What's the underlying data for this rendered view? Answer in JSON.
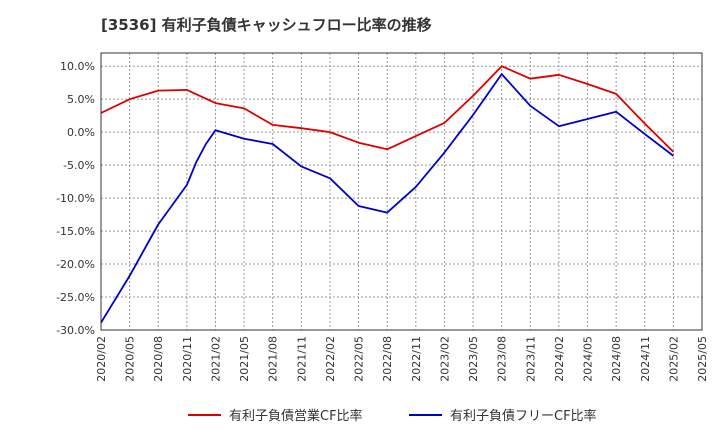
{
  "chart_data": {
    "type": "line",
    "title": "[3536]  有利子負債キャッシュフロー比率の推移",
    "xlabel": "",
    "ylabel": "",
    "ylim": [
      -30,
      12
    ],
    "y_ticks": [
      10,
      5,
      0,
      -5,
      -10,
      -15,
      -20,
      -25,
      -30
    ],
    "y_tick_labels": [
      "10.0%",
      "5.0%",
      "0.0%",
      "-5.0%",
      "-10.0%",
      "-15.0%",
      "-20.0%",
      "-25.0%",
      "-30.0%"
    ],
    "x_tick_labels": [
      "2020/02",
      "2020/05",
      "2020/08",
      "2020/11",
      "2021/02",
      "2021/05",
      "2021/08",
      "2021/11",
      "2022/02",
      "2022/05",
      "2022/08",
      "2022/11",
      "2023/02",
      "2023/05",
      "2023/08",
      "2023/11",
      "2024/02",
      "2024/05",
      "2024/08",
      "2024/11",
      "2025/02",
      "2025/05"
    ],
    "grid": true,
    "legend_position": "bottom",
    "series": [
      {
        "name": "有利子負債営業CF比率",
        "color": "#dd0000",
        "points": [
          [
            "2020/02",
            2.9
          ],
          [
            "2020/05",
            5.0
          ],
          [
            "2020/08",
            6.3
          ],
          [
            "2020/11",
            6.4
          ],
          [
            "2021/02",
            4.4
          ],
          [
            "2021/05",
            3.6
          ],
          [
            "2021/08",
            1.1
          ],
          [
            "2021/11",
            0.6
          ],
          [
            "2022/02",
            0.0
          ],
          [
            "2022/05",
            -1.6
          ],
          [
            "2022/08",
            -2.6
          ],
          [
            "2022/11",
            -0.6
          ],
          [
            "2023/02",
            1.4
          ],
          [
            "2023/05",
            5.5
          ],
          [
            "2023/08",
            10.0
          ],
          [
            "2023/11",
            8.1
          ],
          [
            "2024/02",
            8.7
          ],
          [
            "2024/05",
            7.3
          ],
          [
            "2024/08",
            5.8
          ],
          [
            "2024/11",
            1.3
          ],
          [
            "2025/02",
            -3.0
          ]
        ]
      },
      {
        "name": "有利子負債フリーCF比率",
        "color": "#0000cc",
        "points": [
          [
            "2020/02",
            -28.9
          ],
          [
            "2020/05",
            -21.8
          ],
          [
            "2020/08",
            -14.0
          ],
          [
            "2020/11",
            -8.0
          ],
          [
            "2020/12",
            -4.5
          ],
          [
            "2021/01",
            -1.8
          ],
          [
            "2021/02",
            0.3
          ],
          [
            "2021/05",
            -1.0
          ],
          [
            "2021/08",
            -1.8
          ],
          [
            "2021/11",
            -5.2
          ],
          [
            "2022/02",
            -7.0
          ],
          [
            "2022/05",
            -11.2
          ],
          [
            "2022/08",
            -12.2
          ],
          [
            "2022/11",
            -8.3
          ],
          [
            "2023/02",
            -3.1
          ],
          [
            "2023/05",
            2.6
          ],
          [
            "2023/08",
            8.8
          ],
          [
            "2023/11",
            4.0
          ],
          [
            "2024/02",
            0.9
          ],
          [
            "2024/05",
            2.0
          ],
          [
            "2024/08",
            3.1
          ],
          [
            "2024/11",
            -0.3
          ],
          [
            "2025/02",
            -3.6
          ]
        ]
      }
    ]
  }
}
